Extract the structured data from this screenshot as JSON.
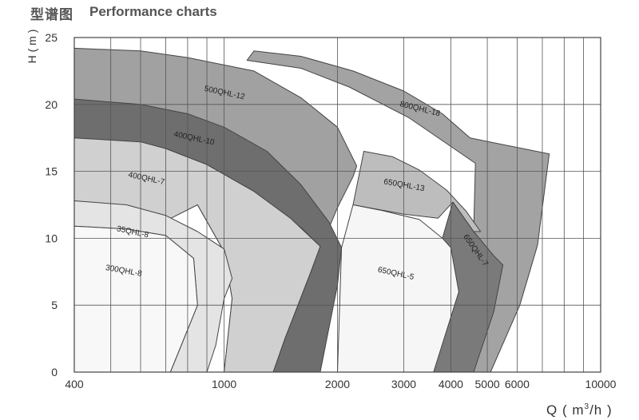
{
  "header": {
    "title_cn": "型谱图",
    "title_en": "Performance charts"
  },
  "chart_data": {
    "type": "area",
    "xscale": "log",
    "xlim": [
      400,
      10000
    ],
    "ylim": [
      0,
      25
    ],
    "x_ticks": [
      400,
      1000,
      2000,
      3000,
      4000,
      5000,
      6000,
      10000
    ],
    "x_tick_labels": [
      "400",
      "1000",
      "2000",
      "3000",
      "4000",
      "5000",
      "6000",
      "10000"
    ],
    "y_ticks": [
      0,
      5,
      10,
      15,
      20,
      25
    ],
    "y_tick_labels": [
      "0",
      "5",
      "10",
      "15",
      "20",
      "25"
    ],
    "x_gridlines": [
      400,
      500,
      600,
      700,
      800,
      900,
      1000,
      2000,
      3000,
      4000,
      5000,
      6000,
      7000,
      8000,
      9000,
      10000
    ],
    "y_gridlines": [
      0,
      5,
      10,
      15,
      20,
      25
    ],
    "grid": true,
    "xlabel_main": "Q ( m",
    "xlabel_sup": "3",
    "xlabel_tail": "/h )",
    "ylabel": "H ( m )",
    "series": [
      {
        "name": "800QHL-18",
        "color": "#a3a3a3",
        "outline": [
          [
            1200,
            24
          ],
          [
            1600,
            23.6
          ],
          [
            2200,
            22.5
          ],
          [
            3000,
            21
          ],
          [
            3800,
            19.3
          ],
          [
            4500,
            17.5
          ],
          [
            7300,
            16.3
          ],
          [
            6800,
            9.5
          ],
          [
            6100,
            5
          ],
          [
            5100,
            0
          ],
          [
            3650,
            0
          ],
          [
            4050,
            5.5
          ],
          [
            4600,
            10.5
          ],
          [
            4650,
            15.6
          ],
          [
            3100,
            19
          ],
          [
            2150,
            21.3
          ],
          [
            1600,
            22.7
          ],
          [
            1150,
            23.3
          ]
        ],
        "label_at": [
          3300,
          19.5
        ],
        "label_rotate": 14
      },
      {
        "name": "500QHL-12",
        "color": "#a1a1a1",
        "outline": [
          [
            400,
            24.2
          ],
          [
            600,
            24
          ],
          [
            800,
            23.5
          ],
          [
            1200,
            22.5
          ],
          [
            1600,
            20.5
          ],
          [
            2000,
            18.3
          ],
          [
            2250,
            15.4
          ],
          [
            2200,
            14.6
          ],
          [
            2000,
            12.3
          ],
          [
            1700,
            7.5
          ],
          [
            1450,
            2.5
          ],
          [
            1350,
            0
          ],
          [
            1000,
            0
          ],
          [
            1050,
            5.5
          ],
          [
            1000,
            9
          ],
          [
            850,
            12.5
          ],
          [
            700,
            14.3
          ],
          [
            550,
            15
          ],
          [
            400,
            15.3
          ]
        ],
        "label_at": [
          1000,
          20.7
        ],
        "label_rotate": 12
      },
      {
        "name": "400QHL-10",
        "color": "#6e6e6e",
        "outline": [
          [
            400,
            20.4
          ],
          [
            600,
            20
          ],
          [
            800,
            19.3
          ],
          [
            1000,
            18.3
          ],
          [
            1300,
            16.5
          ],
          [
            1600,
            14
          ],
          [
            1900,
            11.2
          ],
          [
            2050,
            9.3
          ],
          [
            2000,
            6.5
          ],
          [
            1800,
            0
          ],
          [
            1350,
            0
          ],
          [
            1450,
            2.5
          ],
          [
            1700,
            7.5
          ],
          [
            1800,
            9.4
          ],
          [
            1600,
            10.8
          ],
          [
            1200,
            13.5
          ],
          [
            900,
            15.5
          ],
          [
            700,
            16.7
          ],
          [
            400,
            17.5
          ]
        ],
        "label_at": [
          830,
          17.3
        ],
        "label_rotate": 12
      },
      {
        "name": "400QHL-7",
        "color": "#d0d0d0",
        "outline": [
          [
            400,
            17.5
          ],
          [
            600,
            17.2
          ],
          [
            700,
            16.7
          ],
          [
            900,
            15.5
          ],
          [
            1200,
            13.5
          ],
          [
            1500,
            11.5
          ],
          [
            1800,
            9.4
          ],
          [
            1700,
            7.5
          ],
          [
            1450,
            2.5
          ],
          [
            1350,
            0
          ],
          [
            1000,
            0
          ],
          [
            1050,
            5.5
          ],
          [
            1000,
            9
          ],
          [
            850,
            12.5
          ],
          [
            700,
            11.3
          ],
          [
            550,
            12
          ],
          [
            400,
            12.8
          ]
        ],
        "label_at": [
          620,
          14.3
        ],
        "label_rotate": 12
      },
      {
        "name": "35QHL-8",
        "color": "#e4e4e4",
        "outline": [
          [
            400,
            12.8
          ],
          [
            550,
            12.5
          ],
          [
            700,
            11.7
          ],
          [
            850,
            10.5
          ],
          [
            1000,
            9.2
          ],
          [
            1050,
            7
          ],
          [
            1000,
            5.5
          ],
          [
            950,
            2
          ],
          [
            900,
            0
          ],
          [
            720,
            0
          ],
          [
            850,
            5
          ],
          [
            830,
            8.5
          ],
          [
            700,
            10.2
          ],
          [
            550,
            10.7
          ],
          [
            400,
            10.9
          ]
        ],
        "label_at": [
          570,
          10.3
        ],
        "label_rotate": 12
      },
      {
        "name": "300QHL-8",
        "color": "#f8f8f8",
        "outline": [
          [
            400,
            10.9
          ],
          [
            550,
            10.7
          ],
          [
            700,
            10.2
          ],
          [
            830,
            8.5
          ],
          [
            850,
            5
          ],
          [
            720,
            0
          ],
          [
            400,
            0
          ]
        ],
        "label_at": [
          540,
          7.4
        ],
        "label_rotate": 10
      },
      {
        "name": "650QHL-13",
        "color": "#bdbdbd",
        "outline": [
          [
            2350,
            16.5
          ],
          [
            2800,
            16.1
          ],
          [
            3300,
            15.1
          ],
          [
            3900,
            13.6
          ],
          [
            4400,
            12
          ],
          [
            4800,
            10.5
          ],
          [
            4600,
            10.5
          ],
          [
            4050,
            12.7
          ],
          [
            3700,
            11.5
          ],
          [
            3000,
            11.8
          ],
          [
            2200,
            12.5
          ]
        ],
        "label_at": [
          3000,
          13.8
        ],
        "label_rotate": 10
      },
      {
        "name": "650QHL-7",
        "color": "#7a7a7a",
        "outline": [
          [
            4050,
            12.7
          ],
          [
            4600,
            10.5
          ],
          [
            5200,
            8.7
          ],
          [
            5500,
            8
          ],
          [
            5200,
            4.5
          ],
          [
            4600,
            0
          ],
          [
            3500,
            0
          ],
          [
            4200,
            6
          ],
          [
            3800,
            10
          ]
        ],
        "label_at": [
          4600,
          9.0
        ],
        "label_rotate": 55
      },
      {
        "name": "650QHL-5",
        "color": "#f6f6f6",
        "outline": [
          [
            2200,
            12.5
          ],
          [
            2600,
            12.1
          ],
          [
            3300,
            11.4
          ],
          [
            3800,
            10
          ],
          [
            4000,
            9.3
          ],
          [
            4200,
            6
          ],
          [
            3600,
            0
          ],
          [
            2000,
            0
          ],
          [
            2050,
            9.3
          ]
        ],
        "label_at": [
          2850,
          7.2
        ],
        "label_rotate": 12
      }
    ]
  }
}
